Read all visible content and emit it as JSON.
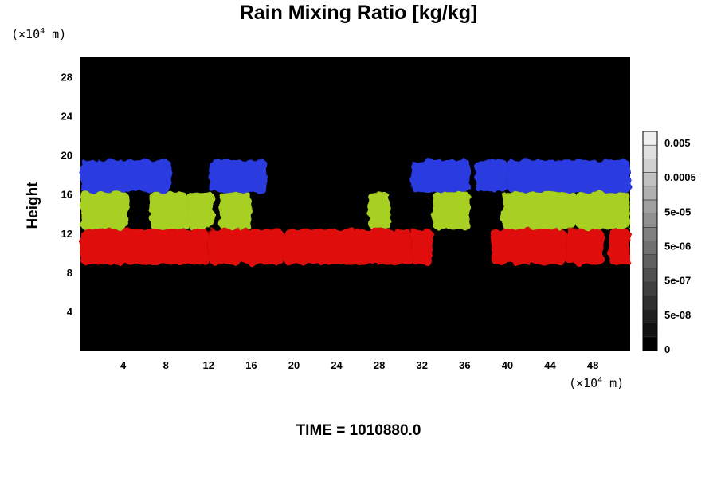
{
  "chart_data": {
    "type": "heatmap",
    "title": "Rain Mixing Ratio [kg/kg]",
    "ylabel": "Height",
    "xlabel": "",
    "x_unit": {
      "base": "(×10",
      "exp": "4",
      "suffix": " m)"
    },
    "y_unit": {
      "base": "(×10",
      "exp": "4",
      "suffix": " m)"
    },
    "xlim": [
      0,
      51.5
    ],
    "ylim": [
      0,
      30
    ],
    "xticks": [
      4,
      8,
      12,
      16,
      20,
      24,
      28,
      32,
      36,
      40,
      44,
      48
    ],
    "yticks": [
      4,
      8,
      12,
      16,
      20,
      24,
      28
    ],
    "background": "#000000",
    "colorbar": {
      "tick_labels": [
        "0.005",
        "0.0005",
        "5e-05",
        "5e-06",
        "5e-07",
        "5e-08",
        "0"
      ],
      "levels": 16,
      "color_min": "#000000",
      "color_max": "#f0f0f0"
    },
    "layers": [
      {
        "name": "upper",
        "color": "#2a3ae0",
        "y_range": [
          16.2,
          19.5
        ],
        "regions": [
          [
            0,
            4.5
          ],
          [
            4,
            8.5
          ],
          [
            12,
            17.5
          ],
          [
            31,
            36.5
          ],
          [
            37,
            40
          ],
          [
            40,
            51.5
          ]
        ]
      },
      {
        "name": "middle",
        "color": "#a8d020",
        "y_range": [
          12.4,
          16.2
        ],
        "regions": [
          [
            0,
            4.5
          ],
          [
            6.5,
            10
          ],
          [
            10,
            12.5
          ],
          [
            13,
            16
          ],
          [
            27,
            29
          ],
          [
            33,
            36.5
          ],
          [
            39.5,
            46.5
          ],
          [
            46.5,
            51.5
          ]
        ]
      },
      {
        "name": "lower",
        "color": "#e01010",
        "y_range": [
          8.8,
          12.4
        ],
        "regions": [
          [
            0,
            12
          ],
          [
            12,
            19
          ],
          [
            19,
            31
          ],
          [
            31,
            33
          ],
          [
            38.5,
            45.5
          ],
          [
            45.5,
            49
          ],
          [
            49.5,
            51.5
          ]
        ]
      }
    ],
    "footer": "TIME = 1010880.0"
  }
}
